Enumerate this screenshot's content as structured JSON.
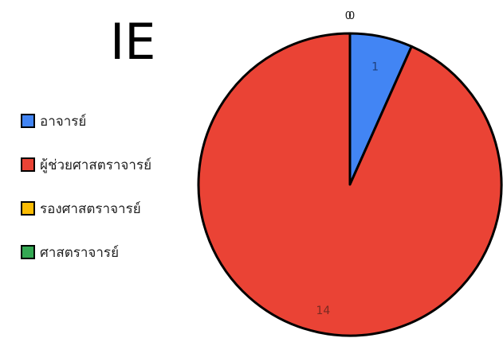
{
  "chart_data": {
    "type": "pie",
    "title": "IE",
    "categories": [
      "อาจารย์",
      "ผู้ช่วยศาสตราจารย์",
      "รองศาสตราจารย์",
      "ศาสตราจารย์"
    ],
    "values": [
      1,
      14,
      0,
      0
    ],
    "colors": [
      "#4285f4",
      "#ea4335",
      "#fbbc04",
      "#34a853"
    ],
    "slice_labels": [
      "1",
      "14",
      "0",
      "0"
    ],
    "legend_position": "left"
  }
}
